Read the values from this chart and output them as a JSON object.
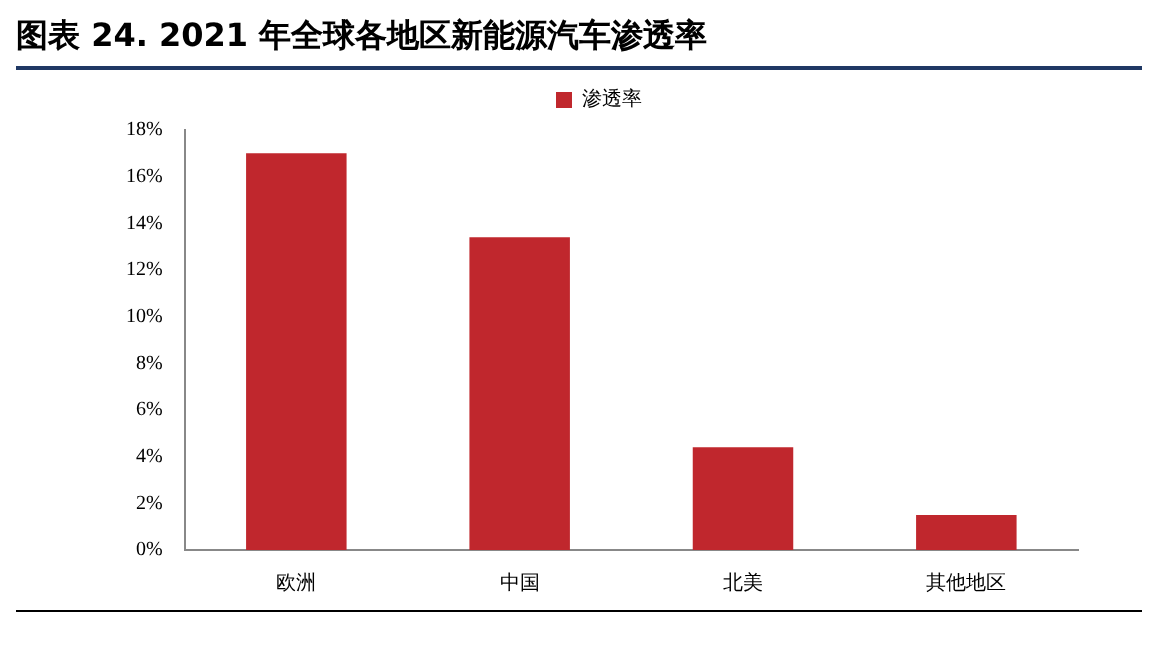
{
  "chart_data": {
    "type": "bar",
    "title": "图表 24. 2021 年全球各地区新能源汽车渗透率",
    "categories": [
      "欧洲",
      "中国",
      "北美",
      "其他地区"
    ],
    "series": [
      {
        "name": "渗透率",
        "color": "#c0272d",
        "values": [
          17,
          13.4,
          4.4,
          1.5
        ]
      }
    ],
    "ylim": [
      0,
      18
    ],
    "yticks": [
      {
        "value": 0,
        "label": "0%"
      },
      {
        "value": 2,
        "label": "2%"
      },
      {
        "value": 4,
        "label": "4%"
      },
      {
        "value": 6,
        "label": "6%"
      },
      {
        "value": 8,
        "label": "8%"
      },
      {
        "value": 10,
        "label": "10%"
      },
      {
        "value": 12,
        "label": "12%"
      },
      {
        "value": 14,
        "label": "14%"
      },
      {
        "value": 16,
        "label": "16%"
      },
      {
        "value": 18,
        "label": "18%"
      }
    ],
    "grid": false,
    "legend": "top"
  }
}
